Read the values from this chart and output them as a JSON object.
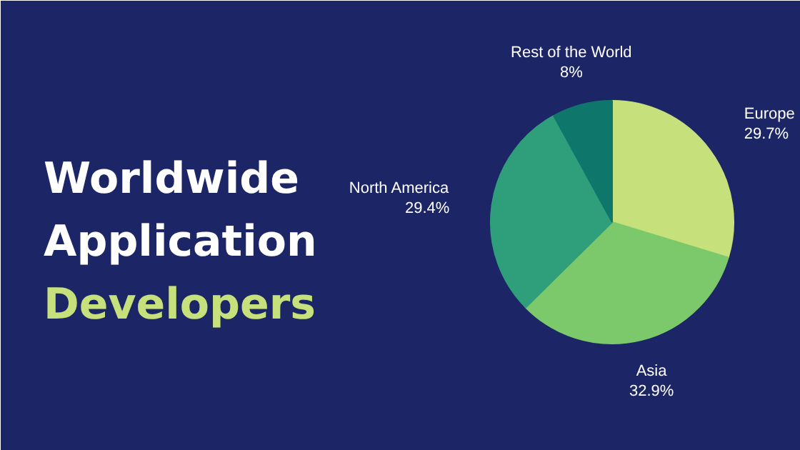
{
  "chart_data": {
    "type": "pie",
    "title": "Worldwide Application Developers",
    "categories": [
      "Europe",
      "Asia",
      "North America",
      "Rest of the World"
    ],
    "values": [
      29.7,
      32.9,
      29.4,
      8
    ],
    "colors": [
      "#c6e07c",
      "#7cc96c",
      "#2f9f7b",
      "#0f766c"
    ],
    "value_labels": [
      "29.7%",
      "32.9%",
      "29.4%",
      "8%"
    ]
  }
}
